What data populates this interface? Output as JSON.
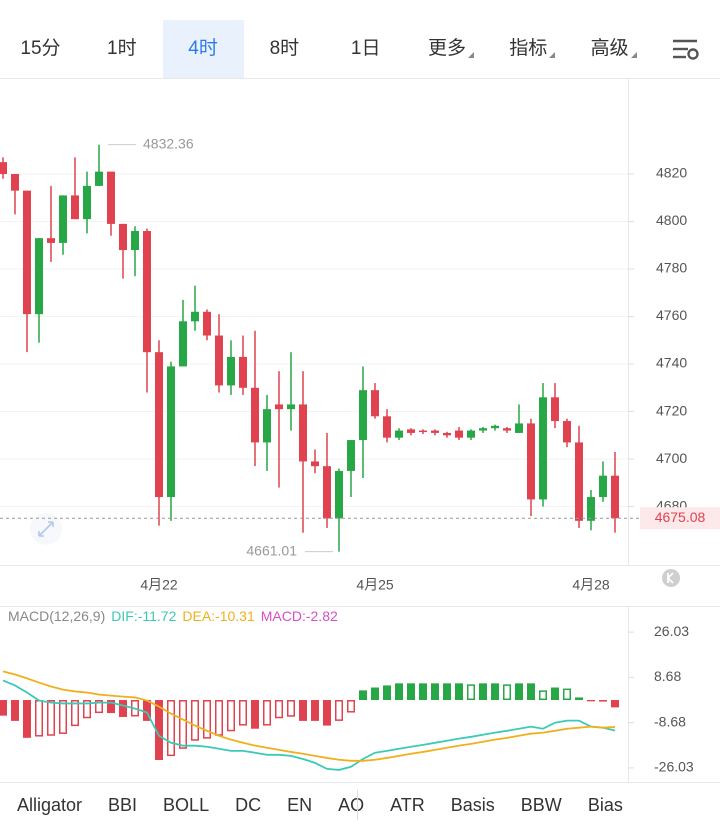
{
  "tabs": {
    "items": [
      {
        "label": "15分"
      },
      {
        "label": "1时"
      },
      {
        "label": "4时"
      },
      {
        "label": "8时"
      },
      {
        "label": "1日"
      },
      {
        "label": "更多",
        "menu": true
      },
      {
        "label": "指标",
        "menu": true
      },
      {
        "label": "高级",
        "menu": true
      }
    ],
    "active": 2
  },
  "chart_data": [
    {
      "type": "candlestick",
      "categories": [
        null,
        null,
        null,
        null,
        null,
        null,
        null,
        null,
        null,
        null,
        null,
        null,
        null,
        "4月22",
        null,
        null,
        null,
        null,
        null,
        null,
        null,
        null,
        null,
        null,
        null,
        null,
        null,
        null,
        null,
        null,
        null,
        "4月25",
        null,
        null,
        null,
        null,
        null,
        null,
        null,
        null,
        null,
        null,
        null,
        null,
        null,
        null,
        null,
        null,
        null,
        "4月28",
        null,
        null
      ],
      "open": [
        4825,
        4820,
        4813,
        4761,
        4793,
        4791,
        4811,
        4801,
        4815,
        4821,
        4799,
        4788,
        4796,
        4745,
        4684,
        4739,
        4758,
        4762,
        4752,
        4731,
        4743,
        4730,
        4707,
        4723,
        4721,
        4723,
        4699,
        4697,
        4675,
        4695,
        4708,
        4729,
        4718,
        4709,
        4712.5,
        4712,
        4712,
        4711,
        4712,
        4709,
        4712,
        4713,
        4713,
        4711,
        4715,
        4683,
        4726,
        4716,
        4707,
        4674,
        4684,
        4693
      ],
      "close": [
        4820,
        4813,
        4761,
        4793,
        4791,
        4811,
        4801,
        4815,
        4821,
        4799,
        4788,
        4796,
        4745,
        4684,
        4739,
        4758,
        4762,
        4752,
        4731,
        4743,
        4730,
        4707,
        4721,
        4721,
        4723,
        4699,
        4697,
        4675,
        4695,
        4708,
        4729,
        4718,
        4709,
        4712,
        4711,
        4711.5,
        4711,
        4710,
        4709,
        4712,
        4713,
        4714,
        4712,
        4715,
        4683,
        4726,
        4716,
        4707,
        4674,
        4684,
        4693,
        4675.08
      ],
      "high": [
        4827,
        4820,
        4813,
        4793,
        4815,
        4811,
        4827,
        4821,
        4832.36,
        4821,
        4799,
        4798,
        4797,
        4750,
        4741,
        4767,
        4773,
        4763,
        4761,
        4750,
        4752,
        4754,
        4727,
        4737,
        4745,
        4737,
        4704,
        4711,
        4696,
        4708,
        4739,
        4732,
        4721,
        4713,
        4713,
        4712.5,
        4712.5,
        4711.5,
        4713.5,
        4712.5,
        4713.5,
        4714.5,
        4713.5,
        4723,
        4717,
        4732,
        4732,
        4717,
        4714,
        4687,
        4699,
        4703
      ],
      "low": [
        4818,
        4803,
        4745,
        4749,
        4783,
        4786,
        4801,
        4795,
        4815,
        4794,
        4776,
        4777,
        4728,
        4672,
        4674,
        4739,
        4754,
        4750,
        4728,
        4727,
        4727,
        4697,
        4695,
        4688,
        4712,
        4669,
        4694,
        4671,
        4661.01,
        4684,
        4692,
        4717,
        4707,
        4708,
        4710,
        4710.5,
        4710,
        4709,
        4708,
        4708,
        4711,
        4712,
        4711,
        4711,
        4676,
        4680,
        4713,
        4705,
        4671,
        4670,
        4682,
        4669
      ],
      "up_color": "#27a745",
      "down_color": "#e0434f",
      "ylim": [
        4655.4,
        4860
      ],
      "yticks": [
        4680,
        4700,
        4720,
        4740,
        4760,
        4780,
        4800,
        4820
      ],
      "grid": true,
      "high_label": 4832.36,
      "low_label": 4661.01,
      "last_price": 4675.08
    },
    {
      "type": "macd",
      "title": "MACD(12,26,9)",
      "series": [
        {
          "name": "DIF:-11.72",
          "color": "#3cc9b5",
          "kind": "line",
          "values": [
            7.5,
            5.6,
            2.9,
            -0.2,
            -1,
            -1.3,
            -1.3,
            -1.3,
            -1,
            -1,
            -2.1,
            -3.3,
            -4.8,
            -13.7,
            -16.4,
            -17.5,
            -17.5,
            -17.9,
            -18.7,
            -19.5,
            -19.5,
            -20.2,
            -21,
            -21,
            -21.4,
            -22.6,
            -24.1,
            -26.4,
            -26.8,
            -25.6,
            -22.6,
            -20.2,
            -19.5,
            -18.7,
            -17.9,
            -17.2,
            -16.4,
            -15.6,
            -14.8,
            -14.1,
            -13.3,
            -12.5,
            -11.8,
            -11,
            -10.2,
            -11,
            -8.7,
            -7.9,
            -7.9,
            -10.2,
            -10.6,
            -11.72
          ]
        },
        {
          "name": "DEA:-10.31",
          "color": "#f0b01e",
          "kind": "line",
          "values": [
            11,
            9.8,
            8.3,
            6.7,
            5.2,
            4,
            3.3,
            2.9,
            2.1,
            1.7,
            1.3,
            1,
            -0.2,
            -2.5,
            -5.2,
            -7.5,
            -9.8,
            -11.8,
            -13.7,
            -15.2,
            -16.4,
            -17.5,
            -18.3,
            -19.1,
            -19.9,
            -20.6,
            -21.4,
            -22.2,
            -22.9,
            -23.3,
            -23.3,
            -22.9,
            -22.2,
            -21.4,
            -20.6,
            -19.9,
            -19.1,
            -18.3,
            -17.5,
            -16.8,
            -16,
            -15.2,
            -14.5,
            -13.7,
            -12.9,
            -12.5,
            -11.8,
            -11,
            -10.6,
            -10.2,
            -10.6,
            -10.31
          ]
        },
        {
          "name": "MACD:-2.82",
          "color": "#d94fc4",
          "kind": "bar",
          "values": [
            -6,
            -8,
            -14.5,
            -14,
            -13.7,
            -13,
            -10,
            -7,
            -5,
            -5,
            -6.5,
            -6.3,
            -8,
            -23,
            -21.5,
            -18.7,
            -15.6,
            -14.8,
            -13.7,
            -12,
            -9.8,
            -11,
            -9.8,
            -7,
            -6.4,
            -8,
            -8,
            -9.8,
            -8,
            -4.8,
            3.7,
            4.8,
            5.6,
            6.4,
            6.4,
            6.4,
            6.4,
            6.4,
            6.4,
            6,
            6.4,
            6.4,
            6,
            6.4,
            6.4,
            3.7,
            4.8,
            4.4,
            1,
            -0.5,
            -0.6,
            -2.82
          ]
        }
      ],
      "up_color": "#27a745",
      "down_color": "#e0434f",
      "title_color": "#888888",
      "ylim": [
        -31.43,
        35.67
      ],
      "yticks": [
        26.03,
        8.68,
        -8.68,
        -26.03
      ]
    }
  ],
  "indicators": [
    "Alligator",
    "BBI",
    "BOLL",
    "DC",
    "EN",
    "AO",
    "ATR",
    "Basis",
    "BBW",
    "Bias"
  ]
}
